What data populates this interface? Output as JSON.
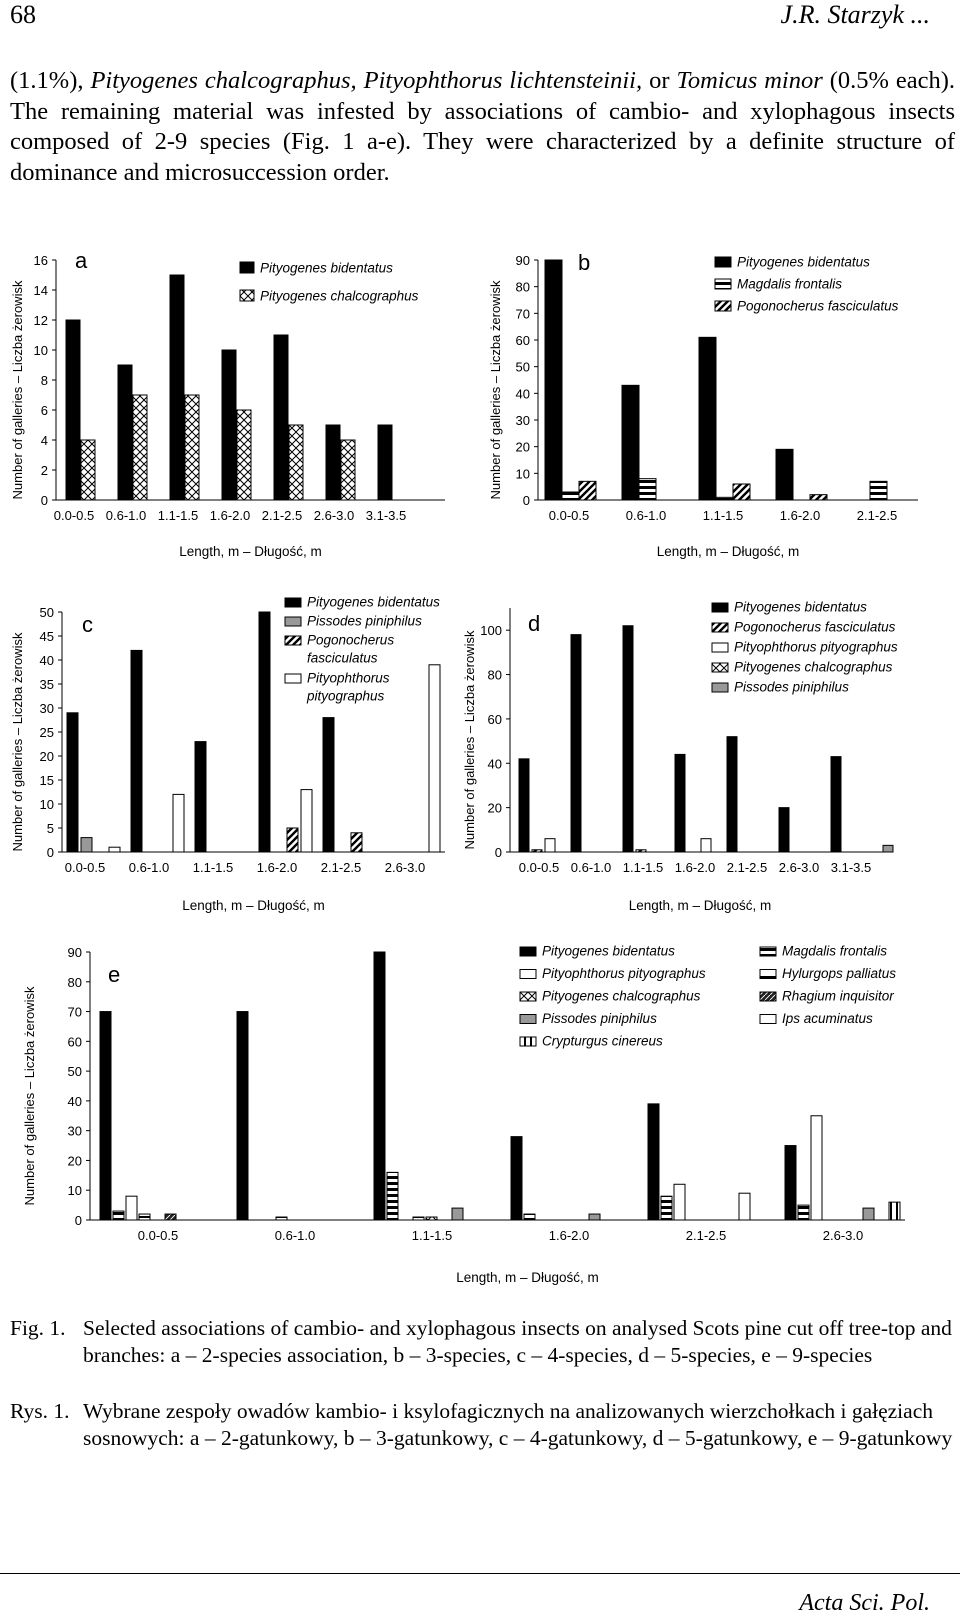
{
  "header": {
    "page_number": "68",
    "author": "J.R. Starzyk ..."
  },
  "intro": {
    "line1_pre": "(1.1%),",
    "line1_species": "Pityogenes chalcographus, Pityophthorus lichtensteinii,",
    "line1_or": "or",
    "line1_species2": "Tomicus minor",
    "rest": "(0.5% each). The remaining material was infested by associations of cambio- and xylophagous insects composed of 2-9 species (Fig. 1 a-e). They were characterized by a definite structure of dominance and microsuccession order."
  },
  "chart_data": [
    {
      "panel": "a",
      "type": "bar",
      "xlabel": "Length, m – Długość, m",
      "ylabel": "Number of galleries – Liczba żerowisk",
      "ylim": [
        0,
        16
      ],
      "yticks": [
        0,
        2,
        4,
        6,
        8,
        10,
        12,
        14,
        16
      ],
      "categories": [
        "0.0-0.5",
        "0.6-1.0",
        "1.1-1.5",
        "1.6-2.0",
        "2.1-2.5",
        "2.6-3.0",
        "3.1-3.5"
      ],
      "series": [
        {
          "name": "Pityogenes bidentatus",
          "pattern": "black",
          "values": [
            12,
            9,
            15,
            10,
            11,
            5,
            5
          ]
        },
        {
          "name": "Pityogenes chalcographus",
          "pattern": "cross",
          "values": [
            4,
            7,
            7,
            6,
            5,
            4,
            0
          ]
        }
      ]
    },
    {
      "panel": "b",
      "type": "bar",
      "xlabel": "Length, m – Długość, m",
      "ylabel": "Number of galleries – Liczba żerowisk",
      "ylim": [
        0,
        90
      ],
      "yticks": [
        0,
        10,
        20,
        30,
        40,
        50,
        60,
        70,
        80,
        90
      ],
      "categories": [
        "0.0-0.5",
        "0.6-1.0",
        "1.1-1.5",
        "1.6-2.0",
        "2.1-2.5"
      ],
      "series": [
        {
          "name": "Pityogenes bidentatus",
          "pattern": "black",
          "values": [
            90,
            43,
            61,
            19,
            0
          ]
        },
        {
          "name": "Magdalis frontalis",
          "pattern": "hstripe",
          "values": [
            3,
            8,
            1,
            0,
            7
          ]
        },
        {
          "name": "Pogonocherus fasciculatus",
          "pattern": "diag",
          "values": [
            7,
            0,
            6,
            2,
            0
          ]
        }
      ]
    },
    {
      "panel": "c",
      "type": "bar",
      "xlabel": "Length, m – Długość, m",
      "ylabel": "Number of galleries – Liczba żerowisk",
      "ylim": [
        0,
        50
      ],
      "yticks": [
        0,
        5,
        10,
        15,
        20,
        25,
        30,
        35,
        40,
        45,
        50
      ],
      "categories": [
        "0.0-0.5",
        "0.6-1.0",
        "1.1-1.5",
        "1.6-2.0",
        "2.1-2.5",
        "2.6-3.0"
      ],
      "series": [
        {
          "name": "Pityogenes bidentatus",
          "pattern": "black",
          "values": [
            29,
            42,
            23,
            50,
            28,
            0
          ]
        },
        {
          "name": "Pissodes piniphilus",
          "pattern": "gray",
          "values": [
            3,
            0,
            0,
            0,
            0,
            0
          ]
        },
        {
          "name": "Pogonocherus fasciculatus",
          "pattern": "diag",
          "values": [
            0,
            0,
            0,
            5,
            4,
            0
          ]
        },
        {
          "name": "Pityophthorus pityographus",
          "pattern": "white",
          "values": [
            1,
            12,
            0,
            13,
            0,
            39
          ]
        }
      ]
    },
    {
      "panel": "d",
      "type": "bar",
      "xlabel": "Length, m – Długość, m",
      "ylabel": "Number of galleries – Liczba żerowisk",
      "ylim": [
        0,
        110
      ],
      "yticks": [
        0,
        20,
        40,
        60,
        80,
        100
      ],
      "categories": [
        "0.0-0.5",
        "0.6-1.0",
        "1.1-1.5",
        "1.6-2.0",
        "2.1-2.5",
        "2.6-3.0",
        "3.1-3.5"
      ],
      "series": [
        {
          "name": "Pityogenes bidentatus",
          "pattern": "black",
          "values": [
            42,
            98,
            102,
            44,
            52,
            20,
            43
          ]
        },
        {
          "name": "Pogonocherus fasciculatus",
          "pattern": "diag",
          "values": [
            1,
            0,
            1,
            0,
            0,
            0,
            0
          ]
        },
        {
          "name": "Pityophthorus pityographus",
          "pattern": "white",
          "values": [
            6,
            0,
            0,
            6,
            0,
            0,
            0
          ]
        },
        {
          "name": "Pityogenes chalcographus",
          "pattern": "cross",
          "values": [
            0,
            0,
            0,
            0,
            0,
            0,
            0
          ]
        },
        {
          "name": "Pissodes piniphilus",
          "pattern": "gray",
          "values": [
            0,
            0,
            4,
            0,
            2,
            0,
            3
          ]
        }
      ]
    },
    {
      "panel": "e",
      "type": "bar",
      "xlabel": "Length, m – Długość, m",
      "ylabel": "Number of galleries – Liczba żerowisk",
      "ylim": [
        0,
        90
      ],
      "yticks": [
        0,
        10,
        20,
        30,
        40,
        50,
        60,
        70,
        80,
        90
      ],
      "categories": [
        "0.0-0.5",
        "0.6-1.0",
        "1.1-1.5",
        "1.6-2.0",
        "2.1-2.5",
        "2.6-3.0"
      ],
      "series": [
        {
          "name": "Pityogenes bidentatus",
          "pattern": "black",
          "values": [
            70,
            70,
            90,
            28,
            39,
            25
          ]
        },
        {
          "name": "Magdalis frontalis",
          "pattern": "hstripe",
          "values": [
            3,
            0,
            16,
            2,
            8,
            5
          ]
        },
        {
          "name": "Pityophthorus pityographus",
          "pattern": "white",
          "values": [
            8,
            0,
            0,
            0,
            12,
            35
          ]
        },
        {
          "name": "Hylurgops palliatus",
          "pattern": "whitebar",
          "values": [
            2,
            1,
            1,
            0,
            0,
            0
          ]
        },
        {
          "name": "Pityogenes chalcographus",
          "pattern": "cross",
          "values": [
            0,
            0,
            1,
            0,
            0,
            0
          ]
        },
        {
          "name": "Rhagium inquisitor",
          "pattern": "dark",
          "values": [
            2,
            0,
            0,
            0,
            0,
            0
          ]
        },
        {
          "name": "Pissodes piniphilus",
          "pattern": "gray",
          "values": [
            0,
            0,
            4,
            2,
            0,
            4
          ]
        },
        {
          "name": "Ips acuminatus",
          "pattern": "white",
          "values": [
            0,
            0,
            0,
            0,
            9,
            0
          ]
        },
        {
          "name": "Crypturgus cinereus",
          "pattern": "vstripe",
          "values": [
            0,
            0,
            0,
            0,
            0,
            6
          ]
        }
      ]
    }
  ],
  "caption": {
    "fig_label": "Fig. 1.",
    "fig_text": "Selected associations of cambio- and xylophagous insects on analysed Scots pine cut off tree-top and branches: a – 2-species association, b – 3-species, c – 4-species, d – 5-species, e – 9-species",
    "rys_label": "Rys. 1.",
    "rys_text": "Wybrane zespoły owadów kambio- i ksylofagicznych na analizowanych wierzchołkach i gałęziach sosnowych: a – 2-gatunkowy, b – 3-gatunkowy, c – 4-gatunkowy, d – 5-gatunkowy, e – 9-gatunkowy"
  },
  "footer": {
    "journal": "Acta Sci. Pol."
  }
}
